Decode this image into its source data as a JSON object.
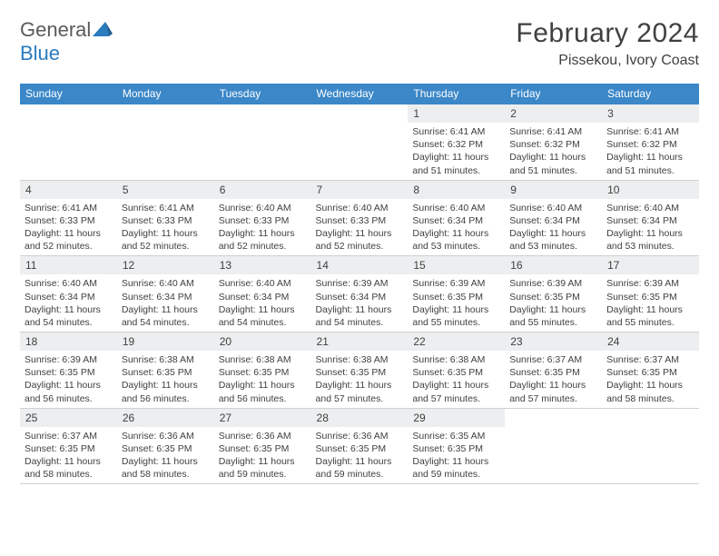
{
  "logo": {
    "text1": "General",
    "text2": "Blue"
  },
  "title": "February 2024",
  "location": "Pissekou, Ivory Coast",
  "weekdays": [
    "Sunday",
    "Monday",
    "Tuesday",
    "Wednesday",
    "Thursday",
    "Friday",
    "Saturday"
  ],
  "colors": {
    "header_bg": "#3b87c8",
    "daynum_bg": "#eceeef",
    "row_border": "#3b87c8",
    "logo_gray": "#5a5a5a",
    "logo_blue": "#2b7bbf"
  },
  "weeks": [
    [
      {
        "n": "",
        "empty": true
      },
      {
        "n": "",
        "empty": true
      },
      {
        "n": "",
        "empty": true
      },
      {
        "n": "",
        "empty": true
      },
      {
        "n": "1",
        "sunrise": "Sunrise: 6:41 AM",
        "sunset": "Sunset: 6:32 PM",
        "daylight": "Daylight: 11 hours and 51 minutes."
      },
      {
        "n": "2",
        "sunrise": "Sunrise: 6:41 AM",
        "sunset": "Sunset: 6:32 PM",
        "daylight": "Daylight: 11 hours and 51 minutes."
      },
      {
        "n": "3",
        "sunrise": "Sunrise: 6:41 AM",
        "sunset": "Sunset: 6:32 PM",
        "daylight": "Daylight: 11 hours and 51 minutes."
      }
    ],
    [
      {
        "n": "4",
        "sunrise": "Sunrise: 6:41 AM",
        "sunset": "Sunset: 6:33 PM",
        "daylight": "Daylight: 11 hours and 52 minutes."
      },
      {
        "n": "5",
        "sunrise": "Sunrise: 6:41 AM",
        "sunset": "Sunset: 6:33 PM",
        "daylight": "Daylight: 11 hours and 52 minutes."
      },
      {
        "n": "6",
        "sunrise": "Sunrise: 6:40 AM",
        "sunset": "Sunset: 6:33 PM",
        "daylight": "Daylight: 11 hours and 52 minutes."
      },
      {
        "n": "7",
        "sunrise": "Sunrise: 6:40 AM",
        "sunset": "Sunset: 6:33 PM",
        "daylight": "Daylight: 11 hours and 52 minutes."
      },
      {
        "n": "8",
        "sunrise": "Sunrise: 6:40 AM",
        "sunset": "Sunset: 6:34 PM",
        "daylight": "Daylight: 11 hours and 53 minutes."
      },
      {
        "n": "9",
        "sunrise": "Sunrise: 6:40 AM",
        "sunset": "Sunset: 6:34 PM",
        "daylight": "Daylight: 11 hours and 53 minutes."
      },
      {
        "n": "10",
        "sunrise": "Sunrise: 6:40 AM",
        "sunset": "Sunset: 6:34 PM",
        "daylight": "Daylight: 11 hours and 53 minutes."
      }
    ],
    [
      {
        "n": "11",
        "sunrise": "Sunrise: 6:40 AM",
        "sunset": "Sunset: 6:34 PM",
        "daylight": "Daylight: 11 hours and 54 minutes."
      },
      {
        "n": "12",
        "sunrise": "Sunrise: 6:40 AM",
        "sunset": "Sunset: 6:34 PM",
        "daylight": "Daylight: 11 hours and 54 minutes."
      },
      {
        "n": "13",
        "sunrise": "Sunrise: 6:40 AM",
        "sunset": "Sunset: 6:34 PM",
        "daylight": "Daylight: 11 hours and 54 minutes."
      },
      {
        "n": "14",
        "sunrise": "Sunrise: 6:39 AM",
        "sunset": "Sunset: 6:34 PM",
        "daylight": "Daylight: 11 hours and 54 minutes."
      },
      {
        "n": "15",
        "sunrise": "Sunrise: 6:39 AM",
        "sunset": "Sunset: 6:35 PM",
        "daylight": "Daylight: 11 hours and 55 minutes."
      },
      {
        "n": "16",
        "sunrise": "Sunrise: 6:39 AM",
        "sunset": "Sunset: 6:35 PM",
        "daylight": "Daylight: 11 hours and 55 minutes."
      },
      {
        "n": "17",
        "sunrise": "Sunrise: 6:39 AM",
        "sunset": "Sunset: 6:35 PM",
        "daylight": "Daylight: 11 hours and 55 minutes."
      }
    ],
    [
      {
        "n": "18",
        "sunrise": "Sunrise: 6:39 AM",
        "sunset": "Sunset: 6:35 PM",
        "daylight": "Daylight: 11 hours and 56 minutes."
      },
      {
        "n": "19",
        "sunrise": "Sunrise: 6:38 AM",
        "sunset": "Sunset: 6:35 PM",
        "daylight": "Daylight: 11 hours and 56 minutes."
      },
      {
        "n": "20",
        "sunrise": "Sunrise: 6:38 AM",
        "sunset": "Sunset: 6:35 PM",
        "daylight": "Daylight: 11 hours and 56 minutes."
      },
      {
        "n": "21",
        "sunrise": "Sunrise: 6:38 AM",
        "sunset": "Sunset: 6:35 PM",
        "daylight": "Daylight: 11 hours and 57 minutes."
      },
      {
        "n": "22",
        "sunrise": "Sunrise: 6:38 AM",
        "sunset": "Sunset: 6:35 PM",
        "daylight": "Daylight: 11 hours and 57 minutes."
      },
      {
        "n": "23",
        "sunrise": "Sunrise: 6:37 AM",
        "sunset": "Sunset: 6:35 PM",
        "daylight": "Daylight: 11 hours and 57 minutes."
      },
      {
        "n": "24",
        "sunrise": "Sunrise: 6:37 AM",
        "sunset": "Sunset: 6:35 PM",
        "daylight": "Daylight: 11 hours and 58 minutes."
      }
    ],
    [
      {
        "n": "25",
        "sunrise": "Sunrise: 6:37 AM",
        "sunset": "Sunset: 6:35 PM",
        "daylight": "Daylight: 11 hours and 58 minutes."
      },
      {
        "n": "26",
        "sunrise": "Sunrise: 6:36 AM",
        "sunset": "Sunset: 6:35 PM",
        "daylight": "Daylight: 11 hours and 58 minutes."
      },
      {
        "n": "27",
        "sunrise": "Sunrise: 6:36 AM",
        "sunset": "Sunset: 6:35 PM",
        "daylight": "Daylight: 11 hours and 59 minutes."
      },
      {
        "n": "28",
        "sunrise": "Sunrise: 6:36 AM",
        "sunset": "Sunset: 6:35 PM",
        "daylight": "Daylight: 11 hours and 59 minutes."
      },
      {
        "n": "29",
        "sunrise": "Sunrise: 6:35 AM",
        "sunset": "Sunset: 6:35 PM",
        "daylight": "Daylight: 11 hours and 59 minutes."
      },
      {
        "n": "",
        "empty": true
      },
      {
        "n": "",
        "empty": true
      }
    ]
  ]
}
